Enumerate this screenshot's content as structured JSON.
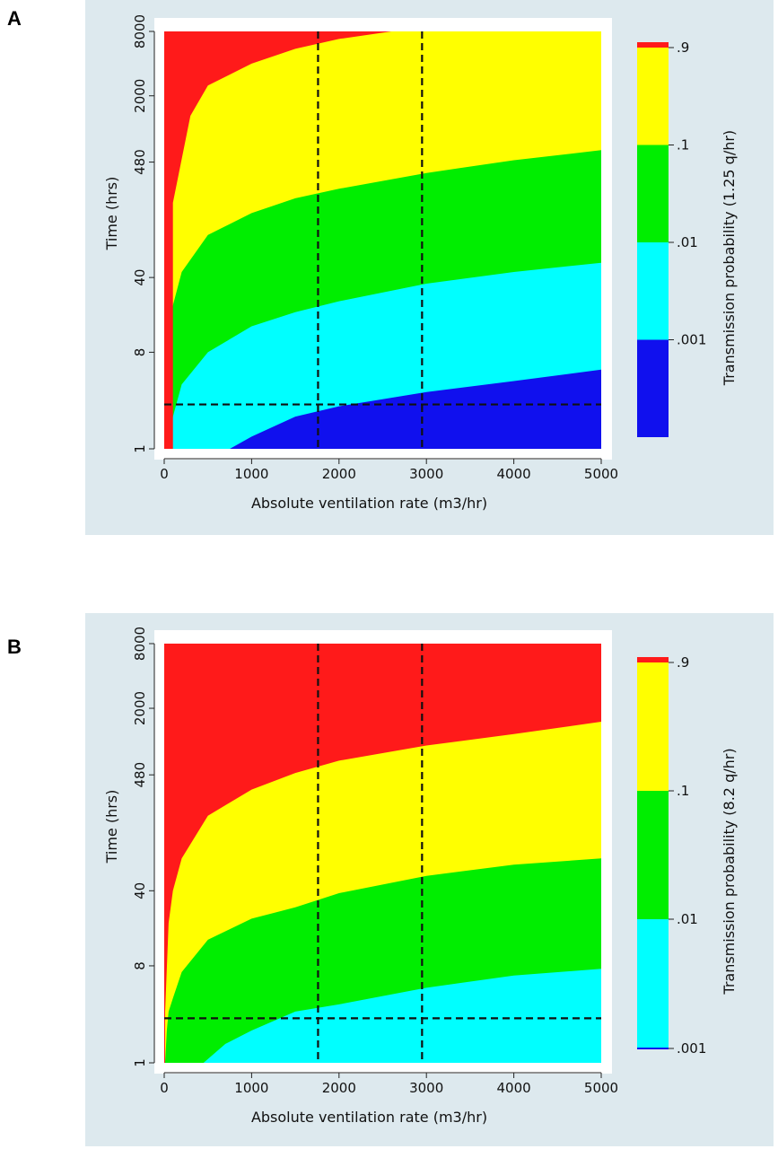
{
  "chart_data": [
    {
      "panel_label": "A",
      "type": "heatmap",
      "xlabel": "Absolute ventilation rate (m3/hr)",
      "ylabel": "Time (hrs)",
      "x_ticks": [
        0,
        1000,
        2000,
        3000,
        4000,
        5000
      ],
      "y_ticks": [
        1,
        8,
        40,
        480,
        2000,
        8000
      ],
      "y_scale": "log",
      "xlim": [
        0,
        5000
      ],
      "ylim": [
        1,
        8000
      ],
      "colorbar_title": "Transmission probability (1.25 q/hr)",
      "colorbar_ticks": [
        ".9",
        ".1",
        ".01",
        ".001"
      ],
      "colorbar_bands": [
        {
          "range": [
            0.9,
            1.0
          ],
          "color": "#ff1a1a"
        },
        {
          "range": [
            0.1,
            0.9
          ],
          "color": "#ffff00"
        },
        {
          "range": [
            0.01,
            0.1
          ],
          "color": "#00ee00"
        },
        {
          "range": [
            0.001,
            0.01
          ],
          "color": "#00ffff"
        },
        {
          "range": [
            0.0,
            0.001
          ],
          "color": "#1010ee"
        }
      ],
      "quanta_rate": 1.25,
      "reference_lines": {
        "x": [
          1760,
          2950
        ],
        "y": [
          2.6
        ]
      },
      "band_boundaries": [
        {
          "probability": 0.9,
          "points": [
            [
              100,
              200
            ],
            [
              300,
              1300
            ],
            [
              500,
              2500
            ],
            [
              1000,
              4000
            ],
            [
              1500,
              5500
            ],
            [
              2000,
              6800
            ],
            [
              2600,
              8000
            ]
          ]
        },
        {
          "probability": 0.1,
          "points": [
            [
              10,
              2
            ],
            [
              50,
              12
            ],
            [
              100,
              22
            ],
            [
              200,
              45
            ],
            [
              500,
              100
            ],
            [
              1000,
              160
            ],
            [
              1500,
              220
            ],
            [
              2000,
              270
            ],
            [
              3000,
              380
            ],
            [
              4000,
              500
            ],
            [
              5000,
              620
            ]
          ]
        },
        {
          "probability": 0.01,
          "points": [
            [
              60,
              1
            ],
            [
              100,
              2
            ],
            [
              200,
              4
            ],
            [
              500,
              8
            ],
            [
              1000,
              14
            ],
            [
              1500,
              19
            ],
            [
              2000,
              24
            ],
            [
              3000,
              35
            ],
            [
              4000,
              45
            ],
            [
              5000,
              55
            ]
          ]
        },
        {
          "probability": 0.001,
          "points": [
            [
              750,
              1
            ],
            [
              1000,
              1.3
            ],
            [
              1500,
              2
            ],
            [
              2000,
              2.5
            ],
            [
              3000,
              3.4
            ],
            [
              4000,
              4.3
            ],
            [
              5000,
              5.5
            ]
          ]
        }
      ]
    },
    {
      "panel_label": "B",
      "type": "heatmap",
      "xlabel": "Absolute ventilation rate (m3/hr)",
      "ylabel": "Time (hrs)",
      "x_ticks": [
        0,
        1000,
        2000,
        3000,
        4000,
        5000
      ],
      "y_ticks": [
        1,
        8,
        40,
        480,
        2000,
        8000
      ],
      "y_scale": "log",
      "xlim": [
        0,
        5000
      ],
      "ylim": [
        1,
        8000
      ],
      "colorbar_title": "Transmission probability (8.2 q/hr)",
      "colorbar_ticks": [
        ".9",
        ".1",
        ".01",
        ".001"
      ],
      "colorbar_bands": [
        {
          "range": [
            0.9,
            1.0
          ],
          "color": "#ff1a1a"
        },
        {
          "range": [
            0.1,
            0.9
          ],
          "color": "#ffff00"
        },
        {
          "range": [
            0.01,
            0.1
          ],
          "color": "#00ee00"
        },
        {
          "range": [
            0.001,
            0.01
          ],
          "color": "#00ffff"
        },
        {
          "range": [
            0.0,
            0.001
          ],
          "color": "#1010ee"
        }
      ],
      "quanta_rate": 8.2,
      "reference_lines": {
        "x": [
          1760,
          2950
        ],
        "y": [
          2.6
        ]
      },
      "band_boundaries": [
        {
          "probability": 0.9,
          "points": [
            [
              10,
              3
            ],
            [
              50,
              20
            ],
            [
              100,
              40
            ],
            [
              200,
              80
            ],
            [
              500,
              200
            ],
            [
              1000,
              350
            ],
            [
              1500,
              500
            ],
            [
              2000,
              650
            ],
            [
              3000,
              900
            ],
            [
              4000,
              1150
            ],
            [
              5000,
              1500
            ]
          ]
        },
        {
          "probability": 0.1,
          "points": [
            [
              10,
              1
            ],
            [
              30,
              2
            ],
            [
              50,
              3
            ],
            [
              100,
              4
            ],
            [
              200,
              7
            ],
            [
              500,
              14
            ],
            [
              1000,
              22
            ],
            [
              1500,
              28
            ],
            [
              2000,
              38
            ],
            [
              3000,
              55
            ],
            [
              4000,
              70
            ],
            [
              5000,
              80
            ]
          ]
        },
        {
          "probability": 0.01,
          "points": [
            [
              450,
              1
            ],
            [
              700,
              1.5
            ],
            [
              1000,
              2
            ],
            [
              1500,
              3
            ],
            [
              2000,
              3.5
            ],
            [
              3000,
              5
            ],
            [
              4000,
              6.5
            ],
            [
              5000,
              7.5
            ]
          ]
        }
      ]
    }
  ]
}
